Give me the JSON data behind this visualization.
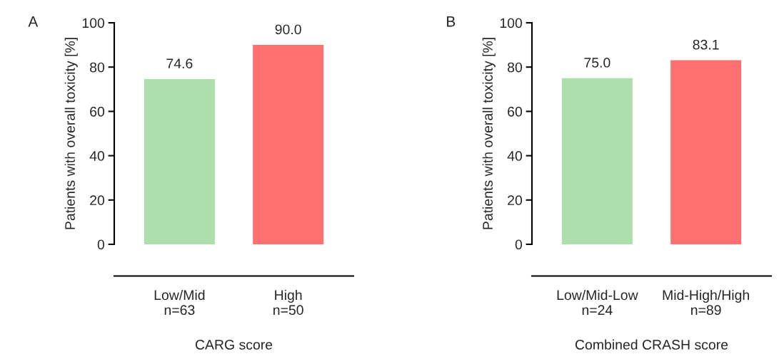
{
  "chart_data": [
    {
      "type": "bar",
      "title": "A",
      "xlabel": "CARG score",
      "ylabel": "Patients with overall toxicity [%]",
      "categories": [
        "Low/Mid\nn=63",
        "High\nn=50"
      ],
      "values": [
        74.6,
        90.0
      ],
      "colors": [
        "#acdfac",
        "#ff7070"
      ],
      "value_labels": [
        "74.6",
        "90.0"
      ],
      "ylim": [
        0,
        100
      ],
      "yticks": [
        0,
        20,
        40,
        60,
        80,
        100
      ],
      "grid": false,
      "legend": false
    },
    {
      "type": "bar",
      "title": "B",
      "xlabel": "Combined CRASH score",
      "ylabel": "Patients with overall toxicity [%]",
      "categories": [
        "Low/Mid-Low\nn=24",
        "Mid-High/High\nn=89"
      ],
      "values": [
        75.0,
        83.1
      ],
      "colors": [
        "#acdfac",
        "#ff7070"
      ],
      "value_labels": [
        "75.0",
        "83.1"
      ],
      "ylim": [
        0,
        100
      ],
      "yticks": [
        0,
        20,
        40,
        60,
        80,
        100
      ],
      "grid": false,
      "legend": false
    }
  ]
}
